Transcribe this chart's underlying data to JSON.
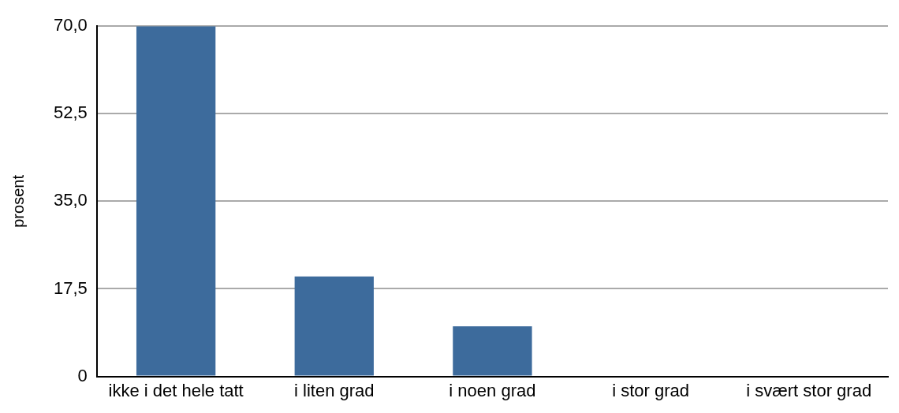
{
  "chart_data": {
    "type": "bar",
    "ylabel": "prosent",
    "categories": [
      "ikke i det hele tatt",
      "i liten grad",
      "i noen grad",
      "i stor grad",
      "i svært stor grad"
    ],
    "values": [
      70,
      20,
      10,
      0,
      0
    ],
    "color": "#3d6b9c",
    "ylim": [
      0,
      70
    ],
    "yticks": [
      0,
      {
        "value": 17.5,
        "label": "17,5"
      },
      {
        "value": 35,
        "label": "35,0"
      },
      {
        "value": 52.5,
        "label": "52,5"
      },
      {
        "value": 70,
        "label": "70,0"
      }
    ],
    "grid": "y",
    "legend": false
  }
}
